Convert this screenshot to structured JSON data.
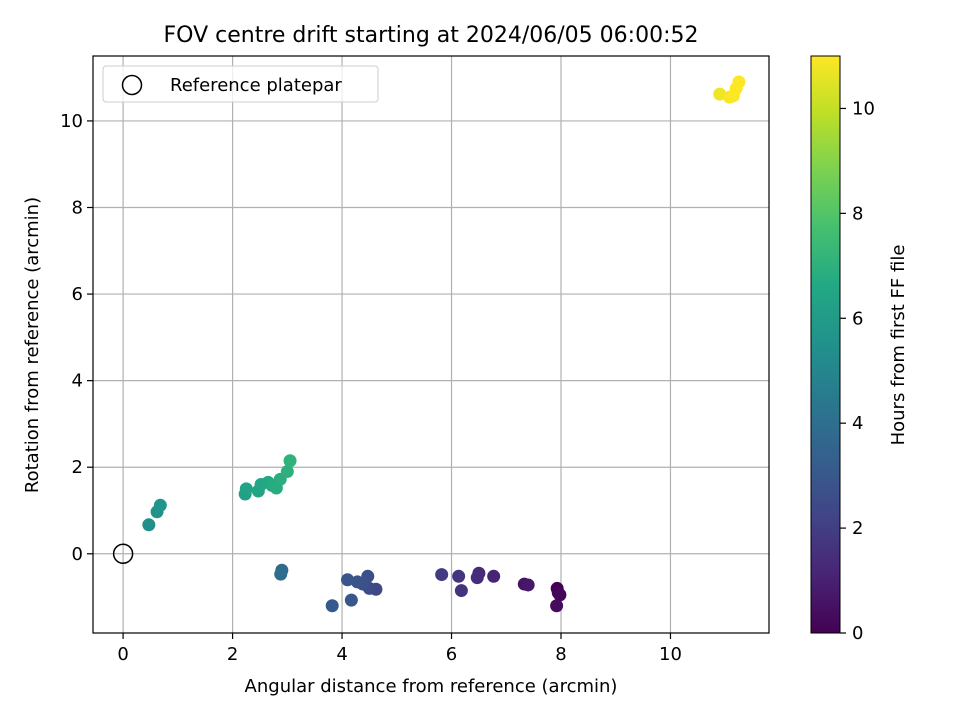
{
  "chart_data": {
    "type": "scatter",
    "title": "FOV centre drift starting at 2024/06/05 06:00:52",
    "xlabel": "Angular distance from reference (arcmin)",
    "ylabel": "Rotation from reference (arcmin)",
    "xlim": [
      -0.55,
      11.8
    ],
    "ylim": [
      -1.83,
      11.5
    ],
    "xticks": [
      0,
      2,
      4,
      6,
      8,
      10
    ],
    "yticks": [
      0,
      2,
      4,
      6,
      8,
      10
    ],
    "grid": true,
    "legend": {
      "placement": "top-left",
      "entries": [
        "Reference platepar"
      ]
    },
    "reference_point": {
      "label": "Reference platepar",
      "x": 0,
      "y": 0
    },
    "colorbar": {
      "label": "Hours from first FF file",
      "range": [
        0,
        11
      ],
      "ticks": [
        0,
        2,
        4,
        6,
        8,
        10
      ],
      "colormap": "viridis"
    },
    "series": [
      {
        "points": [
          {
            "x": 7.93,
            "y": -0.8,
            "c": 0.0
          },
          {
            "x": 7.95,
            "y": -0.9,
            "c": 0.1
          },
          {
            "x": 7.98,
            "y": -0.95,
            "c": 0.2
          },
          {
            "x": 7.92,
            "y": -1.2,
            "c": 0.3
          },
          {
            "x": 7.33,
            "y": -0.7,
            "c": 0.6
          },
          {
            "x": 7.4,
            "y": -0.72,
            "c": 0.7
          },
          {
            "x": 6.77,
            "y": -0.52,
            "c": 1.1
          },
          {
            "x": 6.5,
            "y": -0.45,
            "c": 1.3
          },
          {
            "x": 6.47,
            "y": -0.55,
            "c": 1.4
          },
          {
            "x": 6.18,
            "y": -0.85,
            "c": 1.6
          },
          {
            "x": 6.13,
            "y": -0.52,
            "c": 1.7
          },
          {
            "x": 5.82,
            "y": -0.48,
            "c": 1.9
          },
          {
            "x": 4.62,
            "y": -0.82,
            "c": 2.4
          },
          {
            "x": 4.5,
            "y": -0.8,
            "c": 2.5
          },
          {
            "x": 4.47,
            "y": -0.52,
            "c": 2.6
          },
          {
            "x": 4.38,
            "y": -0.7,
            "c": 2.7
          },
          {
            "x": 4.28,
            "y": -0.65,
            "c": 2.8
          },
          {
            "x": 4.1,
            "y": -0.6,
            "c": 2.9
          },
          {
            "x": 4.17,
            "y": -1.07,
            "c": 3.0
          },
          {
            "x": 3.82,
            "y": -1.2,
            "c": 3.1
          },
          {
            "x": 2.9,
            "y": -0.38,
            "c": 3.8
          },
          {
            "x": 2.88,
            "y": -0.47,
            "c": 3.9
          },
          {
            "x": 0.47,
            "y": 0.67,
            "c": 5.4
          },
          {
            "x": 0.62,
            "y": 0.97,
            "c": 5.6
          },
          {
            "x": 0.68,
            "y": 1.12,
            "c": 5.7
          },
          {
            "x": 2.23,
            "y": 1.38,
            "c": 6.2
          },
          {
            "x": 2.25,
            "y": 1.5,
            "c": 6.3
          },
          {
            "x": 2.47,
            "y": 1.45,
            "c": 6.4
          },
          {
            "x": 2.52,
            "y": 1.6,
            "c": 6.5
          },
          {
            "x": 2.65,
            "y": 1.65,
            "c": 6.6
          },
          {
            "x": 2.72,
            "y": 1.58,
            "c": 6.7
          },
          {
            "x": 2.8,
            "y": 1.52,
            "c": 6.8
          },
          {
            "x": 2.87,
            "y": 1.72,
            "c": 6.9
          },
          {
            "x": 3.0,
            "y": 1.9,
            "c": 7.0
          },
          {
            "x": 3.05,
            "y": 2.15,
            "c": 7.1
          },
          {
            "x": 10.9,
            "y": 10.62,
            "c": 10.8
          },
          {
            "x": 11.08,
            "y": 10.55,
            "c": 10.9
          },
          {
            "x": 11.15,
            "y": 10.58,
            "c": 10.95
          },
          {
            "x": 11.2,
            "y": 10.75,
            "c": 11.0
          },
          {
            "x": 11.25,
            "y": 10.9,
            "c": 11.0
          }
        ]
      }
    ]
  }
}
